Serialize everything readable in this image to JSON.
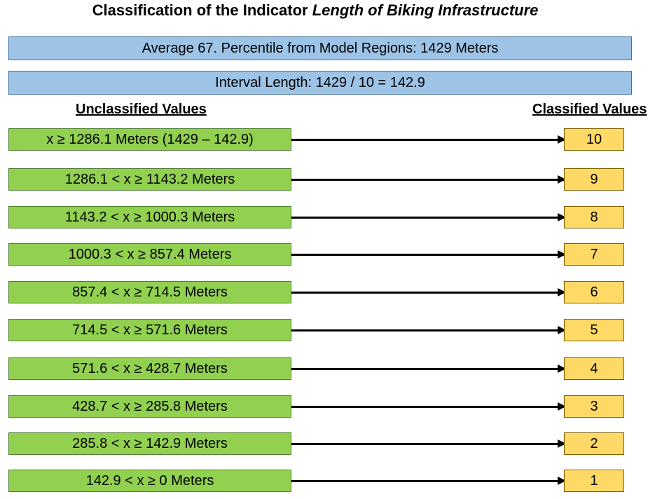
{
  "title": {
    "prefix": "Classification of the Indicator ",
    "italic": "Length of Biking Infrastructure"
  },
  "banner_average": "Average 67. Percentile from Model Regions: 1429 Meters",
  "banner_interval": "Interval Length: 1429 / 10 = 142.9",
  "header_unclassified": "Unclassified Values",
  "header_classified": "Classified Values",
  "rows": [
    {
      "range": "x ≥ 1286.1 Meters (1429 – 142.9)",
      "class": "10"
    },
    {
      "range": "1286.1 < x ≥ 1143.2 Meters",
      "class": "9"
    },
    {
      "range": "1143.2 < x ≥ 1000.3 Meters",
      "class": "8"
    },
    {
      "range": "1000.3 < x ≥ 857.4 Meters",
      "class": "7"
    },
    {
      "range": "857.4 < x ≥ 714.5 Meters",
      "class": "6"
    },
    {
      "range": "714.5 < x ≥ 571.6 Meters",
      "class": "5"
    },
    {
      "range": "571.6 < x ≥ 428.7 Meters",
      "class": "4"
    },
    {
      "range": "428.7 < x ≥ 285.8 Meters",
      "class": "3"
    },
    {
      "range": "285.8 < x ≥ 142.9 Meters",
      "class": "2"
    },
    {
      "range": "142.9 < x ≥ 0 Meters",
      "class": "1"
    }
  ],
  "colors": {
    "banner": "#9dc3e6",
    "range_box": "#92d050",
    "class_box": "#ffd966",
    "arrow": "#000000"
  }
}
